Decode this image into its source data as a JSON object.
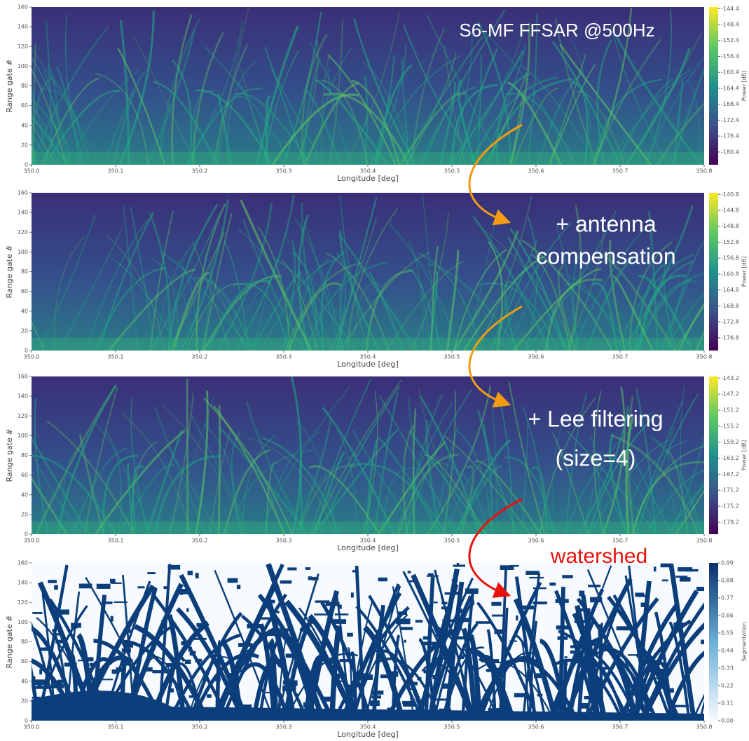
{
  "chart_data": [
    {
      "type": "heatmap",
      "colormap": "viridis",
      "annotation": [
        "S6-MF FFSAR @500Hz"
      ],
      "xlabel": "Longitude [deg]",
      "ylabel": "Range gate #",
      "colorbar_label": "Power [dB]",
      "xlim": [
        350,
        350.8
      ],
      "xticks": [
        {
          "value": 350,
          "label": "350.0"
        },
        350.1,
        350.2,
        350.3,
        350.4,
        350.5,
        350.6,
        350.7,
        350.8
      ],
      "ylim": [
        0,
        160
      ],
      "yticks": [
        0,
        20,
        40,
        60,
        80,
        100,
        120,
        140,
        160
      ],
      "clim": [
        -183.6,
        -144.0
      ],
      "cticks": [
        -144.4,
        -148.4,
        -152.4,
        -156.4,
        -160.4,
        -164.4,
        -168.4,
        -172.4,
        -176.4,
        -180.4
      ]
    },
    {
      "type": "heatmap",
      "colormap": "viridis",
      "annotation": [
        "+ antenna",
        "compensation"
      ],
      "xlabel": "Longitude [deg]",
      "ylabel": "Range gate #",
      "colorbar_label": "Power [dB]",
      "xlim": [
        350,
        350.8
      ],
      "xticks": [
        {
          "value": 350,
          "label": "350.0"
        },
        350.1,
        350.2,
        350.3,
        350.4,
        350.5,
        350.6,
        350.7,
        350.8
      ],
      "ylim": [
        0,
        160
      ],
      "yticks": [
        0,
        20,
        40,
        60,
        80,
        100,
        120,
        140,
        160
      ],
      "clim": [
        -180.0,
        -140.4
      ],
      "cticks": [
        -140.8,
        -144.8,
        -148.8,
        -152.8,
        -156.8,
        -160.8,
        -164.8,
        -168.8,
        -172.8,
        -176.8
      ]
    },
    {
      "type": "heatmap",
      "colormap": "viridis",
      "annotation": [
        "+ Lee filtering",
        "(size=4)"
      ],
      "xlabel": "Longitude [deg]",
      "ylabel": "Range gate #",
      "colorbar_label": "Power [dB]",
      "xlim": [
        350,
        350.8
      ],
      "xticks": [
        {
          "value": 350,
          "label": "350.0"
        },
        350.1,
        350.2,
        350.3,
        350.4,
        350.5,
        350.6,
        350.7,
        350.8
      ],
      "ylim": [
        0,
        160
      ],
      "yticks": [
        0,
        20,
        40,
        60,
        80,
        100,
        120,
        140,
        160
      ],
      "clim": [
        -182.2,
        -142.8
      ],
      "cticks": [
        -143.2,
        -147.2,
        -151.2,
        -155.2,
        -159.2,
        -163.2,
        -167.2,
        -171.2,
        -175.2,
        -179.2
      ]
    },
    {
      "type": "heatmap",
      "colormap": "blues",
      "annotation": [
        "watershed"
      ],
      "xlabel": "Longitude [deg]",
      "ylabel": "Range gate #",
      "colorbar_label": "Segmentation",
      "xlim": [
        350,
        350.8
      ],
      "xticks": [
        {
          "value": 350,
          "label": "350.0"
        },
        350.1,
        350.2,
        350.3,
        350.4,
        350.5,
        350.6,
        350.7,
        350.8
      ],
      "ylim": [
        0,
        160
      ],
      "yticks": [
        0,
        20,
        40,
        60,
        80,
        100,
        120,
        140,
        160
      ],
      "clim": [
        0,
        0.99
      ],
      "cticks": [
        {
          "value": 0,
          "label": "0.00"
        },
        0.11,
        0.22,
        0.33,
        0.44,
        0.55,
        0.66,
        0.77,
        0.88,
        0.99
      ]
    }
  ]
}
